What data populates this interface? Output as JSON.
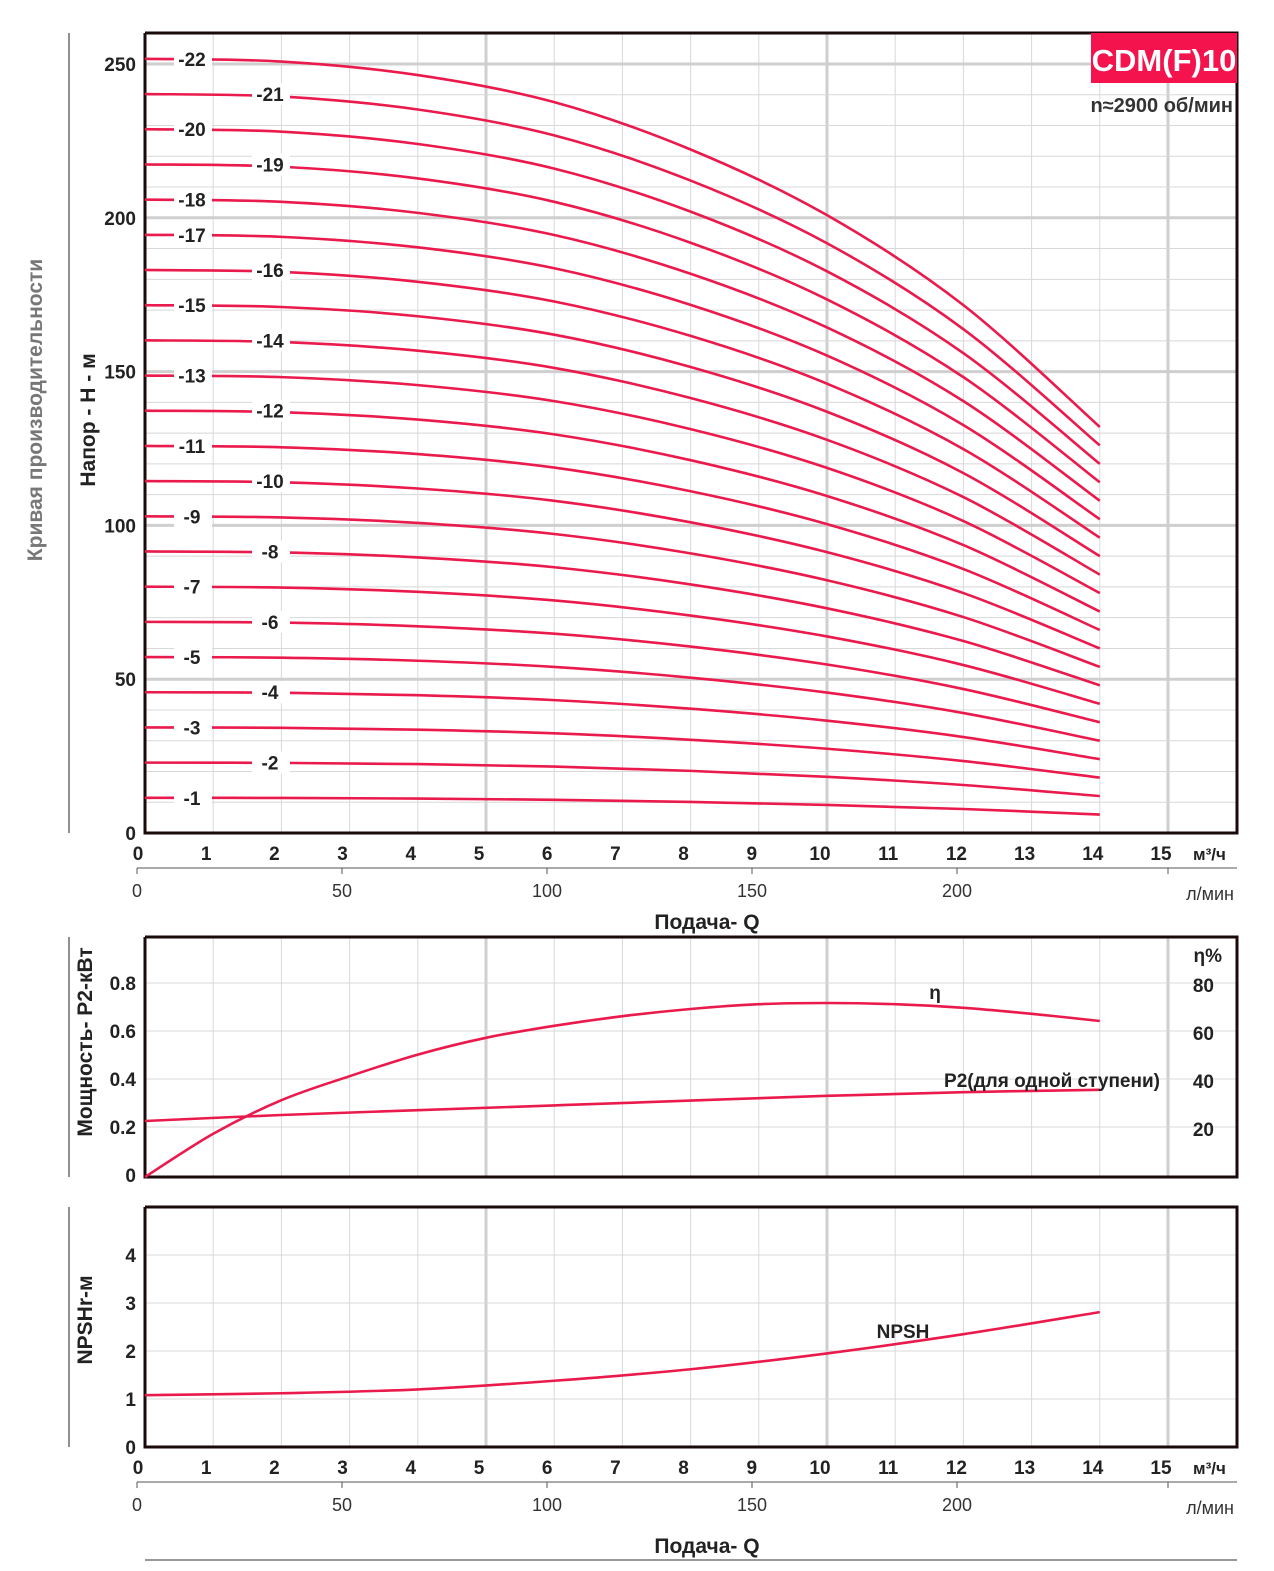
{
  "title": "CDM(F)10",
  "speed": "n≈2900 об/мин",
  "side_title": "Кривая производительности",
  "colors": {
    "curve": "#ea1a4c",
    "badge": "#f4134d",
    "grid": "#d8d8d8",
    "frame": "#1a0a0a"
  },
  "x_axis": {
    "ticks": [
      "0",
      "1",
      "2",
      "3",
      "4",
      "5",
      "6",
      "7",
      "8",
      "9",
      "10",
      "11",
      "12",
      "13",
      "14",
      "15"
    ],
    "unit": "м³/ч",
    "lmin_ticks": [
      "0",
      "50",
      "100",
      "150",
      "200"
    ],
    "lmin_unit": "л/мин",
    "label": "Подача- Q"
  },
  "chart_data": [
    {
      "type": "line",
      "title": "Напор",
      "ylabel": "Напор - H - м",
      "xlabel": "Подача- Q",
      "xlim": [
        0,
        16
      ],
      "ylim": [
        0,
        260
      ],
      "yticks": [
        "0",
        "50",
        "100",
        "150",
        "200",
        "250"
      ],
      "x": [
        0,
        2,
        4,
        6,
        8,
        10,
        12,
        14
      ],
      "head_per_stage": [
        11.44,
        11.4,
        11.2,
        10.8,
        10.1,
        9.13,
        7.8,
        6.0
      ],
      "stages": [
        "-1",
        "-2",
        "-3",
        "-4",
        "-5",
        "-6",
        "-7",
        "-8",
        "-9",
        "-10",
        "-11",
        "-12",
        "-13",
        "-14",
        "-15",
        "-16",
        "-17",
        "-18",
        "-19",
        "-20",
        "-21",
        "-22"
      ],
      "grid": true
    },
    {
      "type": "line",
      "ylabel": "Мощность- P2-кВт",
      "y2label": "η%",
      "yticks": [
        "0",
        "0.2",
        "0.4",
        "0.6",
        "0.8"
      ],
      "y2ticks": [
        "20",
        "40",
        "60",
        "80"
      ],
      "ylim": [
        0,
        1.0
      ],
      "y2lim": [
        0,
        100
      ],
      "series": [
        {
          "name": "η",
          "x": [
            0,
            1,
            2,
            3,
            4,
            5,
            6,
            7,
            8,
            9,
            10,
            11,
            12,
            13,
            14
          ],
          "values": [
            0,
            18,
            32,
            42,
            51,
            58,
            63,
            67,
            70,
            72,
            72.5,
            72,
            70.5,
            68,
            65
          ],
          "axis": "right"
        },
        {
          "name": "P2(для одной ступени)",
          "x": [
            0,
            2,
            4,
            6,
            8,
            10,
            12,
            14
          ],
          "values": [
            0.225,
            0.25,
            0.27,
            0.29,
            0.31,
            0.33,
            0.345,
            0.355
          ],
          "axis": "left"
        }
      ]
    },
    {
      "type": "line",
      "ylabel": "NPSHr-м",
      "yticks": [
        "0",
        "1",
        "2",
        "3",
        "4"
      ],
      "ylim": [
        0,
        5
      ],
      "series": [
        {
          "name": "NPSH",
          "x": [
            0,
            2,
            4,
            6,
            8,
            10,
            12,
            14
          ],
          "values": [
            1.08,
            1.12,
            1.2,
            1.38,
            1.62,
            1.95,
            2.35,
            2.81
          ]
        }
      ]
    }
  ]
}
